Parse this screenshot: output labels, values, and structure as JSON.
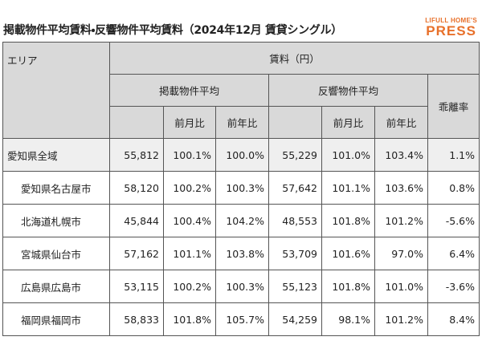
{
  "header": {
    "title": "掲載物件平均賃料・反響物件平均賃料（2024年12月 賃貸シングル）",
    "logo_top": "LIFULL HOME'S",
    "logo_bottom": "PRESS"
  },
  "table": {
    "area_header": "エリア",
    "rent_header": "賃料（円）",
    "listed_header": "掲載物件平均",
    "response_header": "反響物件平均",
    "gap_header": "乖離率",
    "listed_sub": [
      "前月比",
      "前年比"
    ],
    "response_sub": [
      "前月比",
      "前年比"
    ],
    "rows": [
      [
        "愛知県全域",
        "55,812",
        "100.1%",
        "100.0%",
        "55,229",
        "101.0%",
        "103.4%",
        "1.1%"
      ],
      [
        "愛知県名古屋市",
        "58,120",
        "100.2%",
        "100.3%",
        "57,642",
        "101.1%",
        "103.6%",
        "0.8%"
      ],
      [
        "北海道札幌市",
        "45,844",
        "100.4%",
        "104.2%",
        "48,553",
        "101.8%",
        "101.2%",
        "-5.6%"
      ],
      [
        "宮城県仙台市",
        "57,162",
        "101.1%",
        "103.8%",
        "53,709",
        "101.6%",
        "97.0%",
        "6.4%"
      ],
      [
        "広島県広島市",
        "53,115",
        "100.2%",
        "100.3%",
        "55,123",
        "101.8%",
        "101.0%",
        "-3.6%"
      ],
      [
        "福岡県福岡市",
        "58,833",
        "101.8%",
        "105.7%",
        "54,259",
        "98.1%",
        "101.2%",
        "8.4%"
      ]
    ]
  }
}
